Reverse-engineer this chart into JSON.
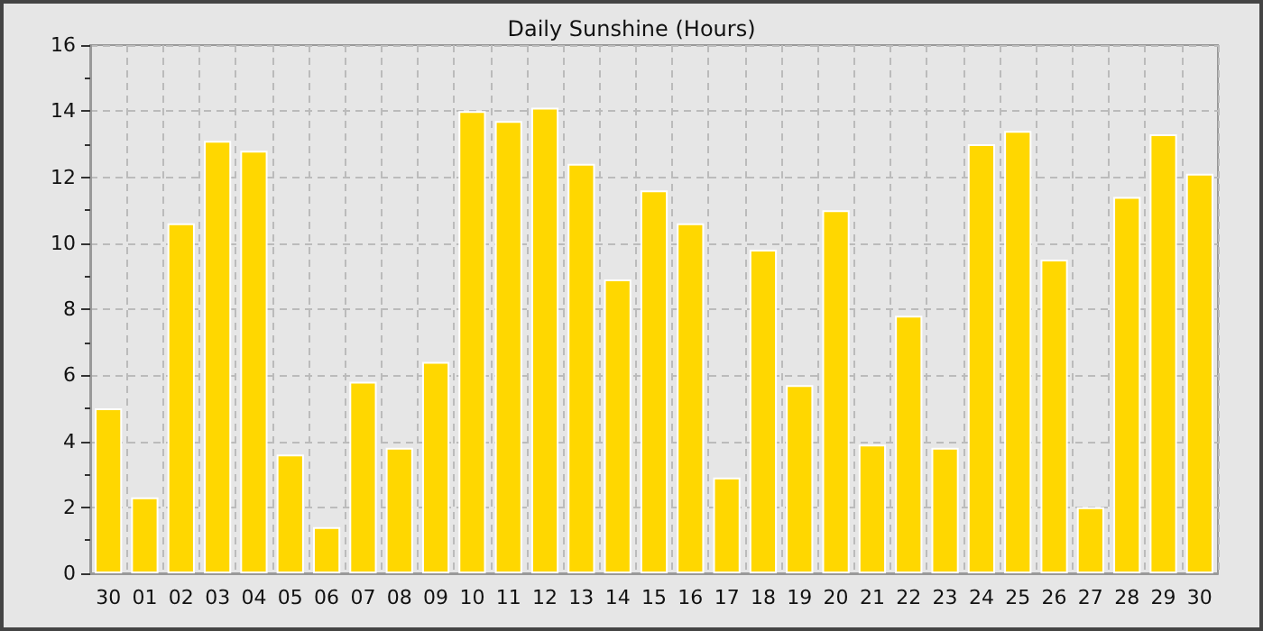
{
  "chart_data": {
    "type": "bar",
    "title": "Daily Sunshine (Hours)",
    "categories": [
      "30",
      "01",
      "02",
      "03",
      "04",
      "05",
      "06",
      "07",
      "08",
      "09",
      "10",
      "11",
      "12",
      "13",
      "14",
      "15",
      "16",
      "17",
      "18",
      "19",
      "20",
      "21",
      "22",
      "23",
      "24",
      "25",
      "26",
      "27",
      "28",
      "29",
      "30"
    ],
    "values": [
      5.0,
      2.3,
      10.6,
      13.1,
      12.8,
      3.6,
      1.4,
      5.8,
      3.8,
      6.4,
      14.0,
      13.7,
      14.1,
      12.4,
      8.9,
      11.6,
      10.6,
      2.9,
      9.8,
      5.7,
      11.0,
      3.9,
      7.8,
      3.8,
      13.0,
      13.4,
      9.5,
      2.0,
      11.4,
      13.3,
      12.1
    ],
    "color": "#ffd700",
    "ylim": [
      0,
      16
    ],
    "yticks": [
      0,
      2,
      4,
      6,
      8,
      10,
      12,
      14,
      16
    ],
    "grid": true
  }
}
